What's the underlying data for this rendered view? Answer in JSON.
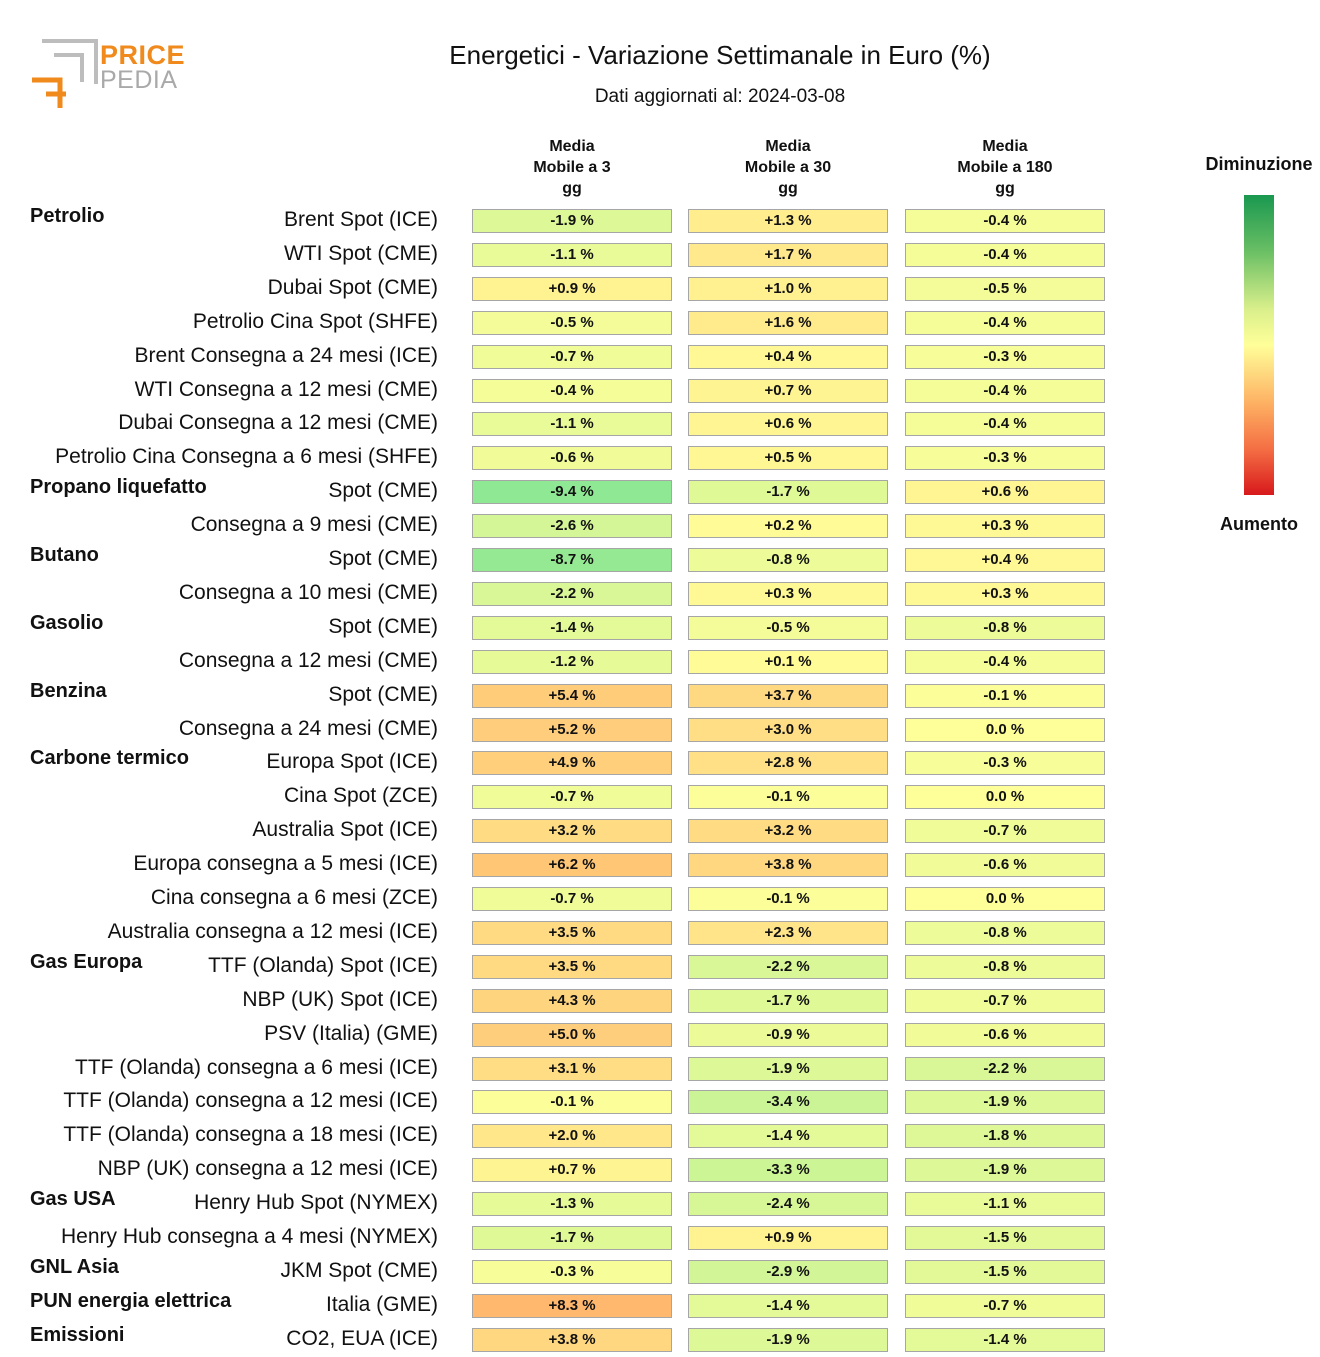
{
  "brand": {
    "line1": "PRICE",
    "line2": "PEDIA"
  },
  "header": {
    "title": "Energetici - Variazione Settimanale in Euro (%)",
    "subtitle": "Dati aggiornati al: 2024-03-08"
  },
  "legend": {
    "top": "Diminuzione",
    "bottom": "Aumento"
  },
  "chart_data": {
    "type": "table",
    "title": "Energetici - Variazione Settimanale in Euro (%)",
    "columns": [
      "Media Mobile a 3 gg",
      "Media Mobile a 30 gg",
      "Media Mobile a 180 gg"
    ],
    "column_lines": [
      [
        "Media",
        "Mobile a 3",
        "gg"
      ],
      [
        "Media",
        "Mobile a 30",
        "gg"
      ],
      [
        "Media",
        "Mobile a 180",
        "gg"
      ]
    ],
    "rows": [
      {
        "group": "Petrolio",
        "label": "Brent Spot (ICE)",
        "values": [
          "-1.9 %",
          "+1.3 %",
          "-0.4 %"
        ]
      },
      {
        "group": "",
        "label": "WTI Spot (CME)",
        "values": [
          "-1.1 %",
          "+1.7 %",
          "-0.4 %"
        ]
      },
      {
        "group": "",
        "label": "Dubai Spot (CME)",
        "values": [
          "+0.9 %",
          "+1.0 %",
          "-0.5 %"
        ]
      },
      {
        "group": "",
        "label": "Petrolio Cina Spot (SHFE)",
        "values": [
          "-0.5 %",
          "+1.6 %",
          "-0.4 %"
        ]
      },
      {
        "group": "",
        "label": "Brent Consegna a 24 mesi (ICE)",
        "values": [
          "-0.7 %",
          "+0.4 %",
          "-0.3 %"
        ]
      },
      {
        "group": "",
        "label": "WTI Consegna a 12 mesi (CME)",
        "values": [
          "-0.4 %",
          "+0.7 %",
          "-0.4 %"
        ]
      },
      {
        "group": "",
        "label": "Dubai Consegna a 12 mesi (CME)",
        "values": [
          "-1.1 %",
          "+0.6 %",
          "-0.4 %"
        ]
      },
      {
        "group": "",
        "label": "Petrolio Cina Consegna a 6 mesi (SHFE)",
        "values": [
          "-0.6 %",
          "+0.5 %",
          "-0.3 %"
        ]
      },
      {
        "group": "Propano liquefatto",
        "label": "Spot (CME)",
        "values": [
          "-9.4 %",
          "-1.7 %",
          "+0.6 %"
        ]
      },
      {
        "group": "",
        "label": "Consegna a 9 mesi (CME)",
        "values": [
          "-2.6 %",
          "+0.2 %",
          "+0.3 %"
        ]
      },
      {
        "group": "Butano",
        "label": "Spot (CME)",
        "values": [
          "-8.7 %",
          "-0.8 %",
          "+0.4 %"
        ]
      },
      {
        "group": "",
        "label": "Consegna a 10 mesi (CME)",
        "values": [
          "-2.2 %",
          "+0.3 %",
          "+0.3 %"
        ]
      },
      {
        "group": "Gasolio",
        "label": "Spot (CME)",
        "values": [
          "-1.4 %",
          "-0.5 %",
          "-0.8 %"
        ]
      },
      {
        "group": "",
        "label": "Consegna a 12 mesi (CME)",
        "values": [
          "-1.2 %",
          "+0.1 %",
          "-0.4 %"
        ]
      },
      {
        "group": "Benzina",
        "label": "Spot (CME)",
        "values": [
          "+5.4 %",
          "+3.7 %",
          "-0.1 %"
        ]
      },
      {
        "group": "",
        "label": "Consegna a 24 mesi (CME)",
        "values": [
          "+5.2 %",
          "+3.0 %",
          "0.0 %"
        ]
      },
      {
        "group": "Carbone termico",
        "label": "Europa Spot (ICE)",
        "values": [
          "+4.9 %",
          "+2.8 %",
          "-0.3 %"
        ]
      },
      {
        "group": "",
        "label": "Cina Spot (ZCE)",
        "values": [
          "-0.7 %",
          "-0.1 %",
          "0.0 %"
        ]
      },
      {
        "group": "",
        "label": "Australia Spot (ICE)",
        "values": [
          "+3.2 %",
          "+3.2 %",
          "-0.7 %"
        ]
      },
      {
        "group": "",
        "label": "Europa consegna a 5 mesi (ICE)",
        "values": [
          "+6.2 %",
          "+3.8 %",
          "-0.6 %"
        ]
      },
      {
        "group": "",
        "label": "Cina consegna a 6 mesi (ZCE)",
        "values": [
          "-0.7 %",
          "-0.1 %",
          "0.0 %"
        ]
      },
      {
        "group": "",
        "label": "Australia consegna a 12 mesi (ICE)",
        "values": [
          "+3.5 %",
          "+2.3 %",
          "-0.8 %"
        ]
      },
      {
        "group": "Gas Europa",
        "label": "TTF (Olanda) Spot (ICE)",
        "values": [
          "+3.5 %",
          "-2.2 %",
          "-0.8 %"
        ]
      },
      {
        "group": "",
        "label": "NBP (UK) Spot (ICE)",
        "values": [
          "+4.3 %",
          "-1.7 %",
          "-0.7 %"
        ]
      },
      {
        "group": "",
        "label": "PSV (Italia) (GME)",
        "values": [
          "+5.0 %",
          "-0.9 %",
          "-0.6 %"
        ]
      },
      {
        "group": "",
        "label": "TTF (Olanda) consegna a 6 mesi (ICE)",
        "values": [
          "+3.1 %",
          "-1.9 %",
          "-2.2 %"
        ]
      },
      {
        "group": "",
        "label": "TTF (Olanda) consegna a 12 mesi (ICE)",
        "values": [
          "-0.1 %",
          "-3.4 %",
          "-1.9 %"
        ]
      },
      {
        "group": "",
        "label": "TTF (Olanda) consegna a 18 mesi (ICE)",
        "values": [
          "+2.0 %",
          "-1.4 %",
          "-1.8 %"
        ]
      },
      {
        "group": "",
        "label": "NBP (UK) consegna a 12 mesi (ICE)",
        "values": [
          "+0.7 %",
          "-3.3 %",
          "-1.9 %"
        ]
      },
      {
        "group": "Gas USA",
        "label": "Henry Hub Spot (NYMEX)",
        "values": [
          "-1.3 %",
          "-2.4 %",
          "-1.1 %"
        ]
      },
      {
        "group": "",
        "label": "Henry Hub consegna a 4 mesi (NYMEX)",
        "values": [
          "-1.7 %",
          "+0.9 %",
          "-1.5 %"
        ]
      },
      {
        "group": "GNL Asia",
        "label": "JKM Spot (CME)",
        "values": [
          "-0.3 %",
          "-2.9 %",
          "-1.5 %"
        ]
      },
      {
        "group": "PUN energia elettrica",
        "label": "Italia (GME)",
        "values": [
          "+8.3 %",
          "-1.4 %",
          "-0.7 %"
        ]
      },
      {
        "group": "Emissioni",
        "label": "CO2, EUA (ICE)",
        "values": [
          "+3.8 %",
          "-1.9 %",
          "-1.4 %"
        ]
      }
    ]
  }
}
